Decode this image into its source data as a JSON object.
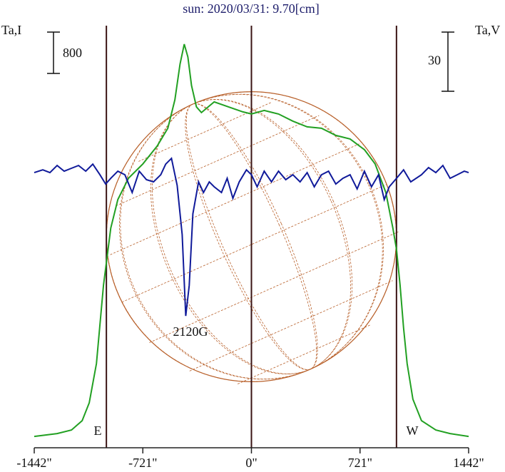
{
  "chart_data": {
    "type": "line",
    "title": "sun: 2020/03/31: 9.70[cm]",
    "y_label": "Ta,I",
    "y2_label": "Ta,V",
    "xlim": [
      -1442,
      1442
    ],
    "xticks": [
      {
        "value": -1442,
        "label": "-1442\""
      },
      {
        "value": -721,
        "label": "-721\""
      },
      {
        "value": 0,
        "label": "0\""
      },
      {
        "value": 721,
        "label": "721\""
      },
      {
        "value": 1442,
        "label": "1442\""
      }
    ],
    "ylim": [
      -220,
      8030
    ],
    "y2lim": [
      -139.4,
      76.6
    ],
    "vlines": [
      -963,
      0,
      963
    ],
    "vline_color": "#3a1414",
    "disk_color": "#b8602a",
    "annotations": [
      "E",
      "W",
      "2120G"
    ],
    "series": [
      {
        "name": "Ta,I",
        "color": "#22a022",
        "scale": 800,
        "x": [
          -1442,
          -1290,
          -1195,
          -1124,
          -1077,
          -1029,
          -982,
          -958,
          -934,
          -887,
          -816,
          -721,
          -626,
          -555,
          -508,
          -474,
          -446,
          -422,
          -398,
          -365,
          -332,
          -247,
          -152,
          -57,
          0,
          85,
          180,
          275,
          370,
          465,
          560,
          655,
          750,
          821,
          892,
          939,
          963,
          987,
          1010,
          1034,
          1072,
          1129,
          1224,
          1319,
          1442
        ],
        "values": [
          0,
          55,
          124,
          304,
          649,
          1408,
          2926,
          3478,
          4030,
          4582,
          4996,
          5272,
          5617,
          5962,
          6514,
          7204,
          7590,
          7342,
          6790,
          6376,
          6266,
          6472,
          6376,
          6279,
          6238,
          6307,
          6238,
          6100,
          5990,
          5962,
          5824,
          5755,
          5548,
          5272,
          4720,
          4030,
          3616,
          2926,
          2098,
          1408,
          718,
          304,
          124,
          55,
          0
        ]
      },
      {
        "name": "Ta,V",
        "color": "#101a9a",
        "axis": "y2",
        "scale": 30,
        "x": [
          -1442,
          -1385,
          -1338,
          -1290,
          -1243,
          -1195,
          -1148,
          -1100,
          -1053,
          -1006,
          -968,
          -934,
          -887,
          -840,
          -792,
          -745,
          -697,
          -650,
          -602,
          -569,
          -531,
          -493,
          -460,
          -436,
          -413,
          -389,
          -351,
          -318,
          -280,
          -247,
          -199,
          -161,
          -123,
          -81,
          -33,
          0,
          38,
          85,
          133,
          180,
          228,
          275,
          323,
          370,
          417,
          465,
          512,
          560,
          607,
          655,
          702,
          750,
          797,
          844,
          882,
          915,
          963,
          1010,
          1058,
          1129,
          1176,
          1224,
          1271,
          1319,
          1366,
          1413,
          1442
        ],
        "values": [
          0,
          1.4,
          0,
          3.6,
          0.7,
          2.2,
          3.6,
          0.7,
          4.3,
          -1.1,
          -5.8,
          -2.9,
          0.7,
          -1.1,
          -10.1,
          0.7,
          -3.6,
          -4.7,
          -1.1,
          4.3,
          7.2,
          -6.5,
          -31.4,
          -72.6,
          -57.1,
          -20.9,
          -4.7,
          -10.1,
          -4.7,
          -7.2,
          -10.1,
          -2.9,
          -13.0,
          -4.7,
          1.4,
          -1.1,
          -7.2,
          0.7,
          -4.7,
          0.7,
          -3.6,
          -1.1,
          -4.7,
          0,
          -7.2,
          -1.1,
          0.7,
          -5.8,
          -2.9,
          -1.1,
          -8.3,
          0.7,
          -7.2,
          -1.1,
          -13.7,
          -7.2,
          -2.9,
          1.4,
          -4.7,
          -1.1,
          2.5,
          0,
          3.6,
          -2.9,
          -1.1,
          0.7,
          0
        ]
      }
    ]
  }
}
